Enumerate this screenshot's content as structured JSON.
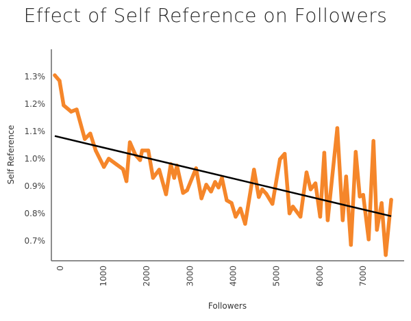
{
  "chart_data": {
    "type": "line",
    "title": "Effect of Self Reference on Followers",
    "xlabel": "Followers",
    "ylabel": "Self Reference",
    "xlim": [
      -205,
      7950
    ],
    "ylim": [
      0.627,
      1.4
    ],
    "x_ticks": [
      0,
      1000,
      2000,
      3000,
      4000,
      5000,
      6000,
      7000
    ],
    "x_tick_labels": [
      "0",
      "1000",
      "2000",
      "3000",
      "4000",
      "5000",
      "6000",
      "7000"
    ],
    "y_ticks": [
      0.7,
      0.8,
      0.9,
      1.0,
      1.1,
      1.2,
      1.3
    ],
    "y_tick_labels": [
      "0.7%",
      "0.8%",
      "0.9%",
      "1.0%",
      "1.1%",
      "1.2%",
      "1.3%"
    ],
    "grid": false,
    "series": [
      {
        "color": "#f5862a",
        "x": [
          -126,
          -16,
          79,
          252,
          379,
          568,
          694,
          820,
          1009,
          1120,
          1293,
          1451,
          1530,
          1609,
          1735,
          1845,
          1893,
          2035,
          2145,
          2287,
          2445,
          2555,
          2634,
          2697,
          2839,
          2934,
          3139,
          3265,
          3375,
          3486,
          3580,
          3659,
          3738,
          3849,
          3959,
          4054,
          4164,
          4274,
          4479,
          4590,
          4669,
          4763,
          4905,
          5079,
          5189,
          5300,
          5379,
          5552,
          5694,
          5789,
          5899,
          6009,
          6104,
          6183,
          6404,
          6530,
          6609,
          6719,
          6830,
          6924,
          7003,
          7129,
          7240,
          7319,
          7429,
          7524,
          7650
        ],
        "y": [
          1.305,
          1.285,
          1.195,
          1.172,
          1.18,
          1.072,
          1.092,
          1.03,
          0.97,
          1.0,
          0.98,
          0.962,
          0.918,
          1.06,
          1.015,
          0.995,
          1.03,
          1.03,
          0.93,
          0.96,
          0.87,
          0.98,
          0.93,
          0.975,
          0.875,
          0.885,
          0.965,
          0.855,
          0.905,
          0.88,
          0.915,
          0.895,
          0.93,
          0.848,
          0.838,
          0.788,
          0.818,
          0.762,
          0.96,
          0.86,
          0.888,
          0.872,
          0.835,
          0.998,
          1.018,
          0.8,
          0.825,
          0.788,
          0.95,
          0.888,
          0.91,
          0.788,
          1.022,
          0.775,
          1.112,
          0.775,
          0.935,
          0.685,
          1.025,
          0.862,
          0.868,
          0.705,
          1.065,
          0.74,
          0.838,
          0.648,
          0.85
        ]
      }
    ],
    "trendline": {
      "color": "#000000",
      "x": [
        -126,
        7650
      ],
      "y": [
        1.083,
        0.79
      ]
    }
  }
}
